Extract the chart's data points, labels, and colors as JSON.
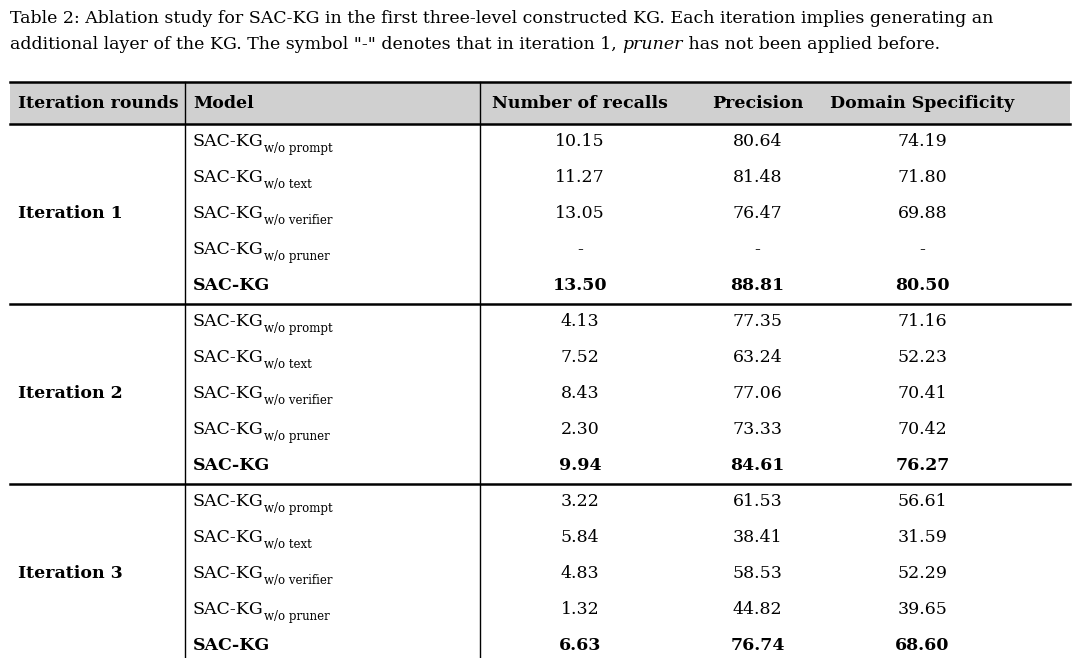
{
  "caption_line1": "Table 2: Ablation study for SAC-KG in the first three-level constructed KG. Each iteration implies generating an",
  "caption_line2_before": "additional layer of the KG. The symbol \"-\" denotes that in iteration 1, ",
  "caption_line2_italic": "pruner",
  "caption_line2_after": " has not been applied before.",
  "headers": [
    "Iteration rounds",
    "Model",
    "Number of recalls",
    "Precision",
    "Domain Specificity"
  ],
  "iterations": [
    {
      "label": "Iteration 1",
      "rows": [
        {
          "model_main": "SAC-KG",
          "model_sub": "w/o prompt",
          "recalls": "10.15",
          "precision": "80.64",
          "domain": "74.19",
          "bold": false
        },
        {
          "model_main": "SAC-KG",
          "model_sub": "w/o text",
          "recalls": "11.27",
          "precision": "81.48",
          "domain": "71.80",
          "bold": false
        },
        {
          "model_main": "SAC-KG",
          "model_sub": "w/o verifier",
          "recalls": "13.05",
          "precision": "76.47",
          "domain": "69.88",
          "bold": false
        },
        {
          "model_main": "SAC-KG",
          "model_sub": "w/o pruner",
          "recalls": "-",
          "precision": "-",
          "domain": "-",
          "bold": false
        },
        {
          "model_main": "SAC-KG",
          "model_sub": "",
          "recalls": "13.50",
          "precision": "88.81",
          "domain": "80.50",
          "bold": true
        }
      ]
    },
    {
      "label": "Iteration 2",
      "rows": [
        {
          "model_main": "SAC-KG",
          "model_sub": "w/o prompt",
          "recalls": "4.13",
          "precision": "77.35",
          "domain": "71.16",
          "bold": false
        },
        {
          "model_main": "SAC-KG",
          "model_sub": "w/o text",
          "recalls": "7.52",
          "precision": "63.24",
          "domain": "52.23",
          "bold": false
        },
        {
          "model_main": "SAC-KG",
          "model_sub": "w/o verifier",
          "recalls": "8.43",
          "precision": "77.06",
          "domain": "70.41",
          "bold": false
        },
        {
          "model_main": "SAC-KG",
          "model_sub": "w/o pruner",
          "recalls": "2.30",
          "precision": "73.33",
          "domain": "70.42",
          "bold": false
        },
        {
          "model_main": "SAC-KG",
          "model_sub": "",
          "recalls": "9.94",
          "precision": "84.61",
          "domain": "76.27",
          "bold": true
        }
      ]
    },
    {
      "label": "Iteration 3",
      "rows": [
        {
          "model_main": "SAC-KG",
          "model_sub": "w/o prompt",
          "recalls": "3.22",
          "precision": "61.53",
          "domain": "56.61",
          "bold": false
        },
        {
          "model_main": "SAC-KG",
          "model_sub": "w/o text",
          "recalls": "5.84",
          "precision": "38.41",
          "domain": "31.59",
          "bold": false
        },
        {
          "model_main": "SAC-KG",
          "model_sub": "w/o verifier",
          "recalls": "4.83",
          "precision": "58.53",
          "domain": "52.29",
          "bold": false
        },
        {
          "model_main": "SAC-KG",
          "model_sub": "w/o pruner",
          "recalls": "1.32",
          "precision": "44.82",
          "domain": "39.65",
          "bold": false
        },
        {
          "model_main": "SAC-KG",
          "model_sub": "",
          "recalls": "6.63",
          "precision": "76.74",
          "domain": "68.60",
          "bold": true
        }
      ]
    }
  ],
  "bg_color": "#ffffff",
  "text_color": "#000000",
  "header_bg": "#d0d0d0",
  "line_color": "#000000",
  "fs_caption": 12.5,
  "fs_header": 12.5,
  "fs_body": 12.5,
  "fs_sub": 8.5
}
